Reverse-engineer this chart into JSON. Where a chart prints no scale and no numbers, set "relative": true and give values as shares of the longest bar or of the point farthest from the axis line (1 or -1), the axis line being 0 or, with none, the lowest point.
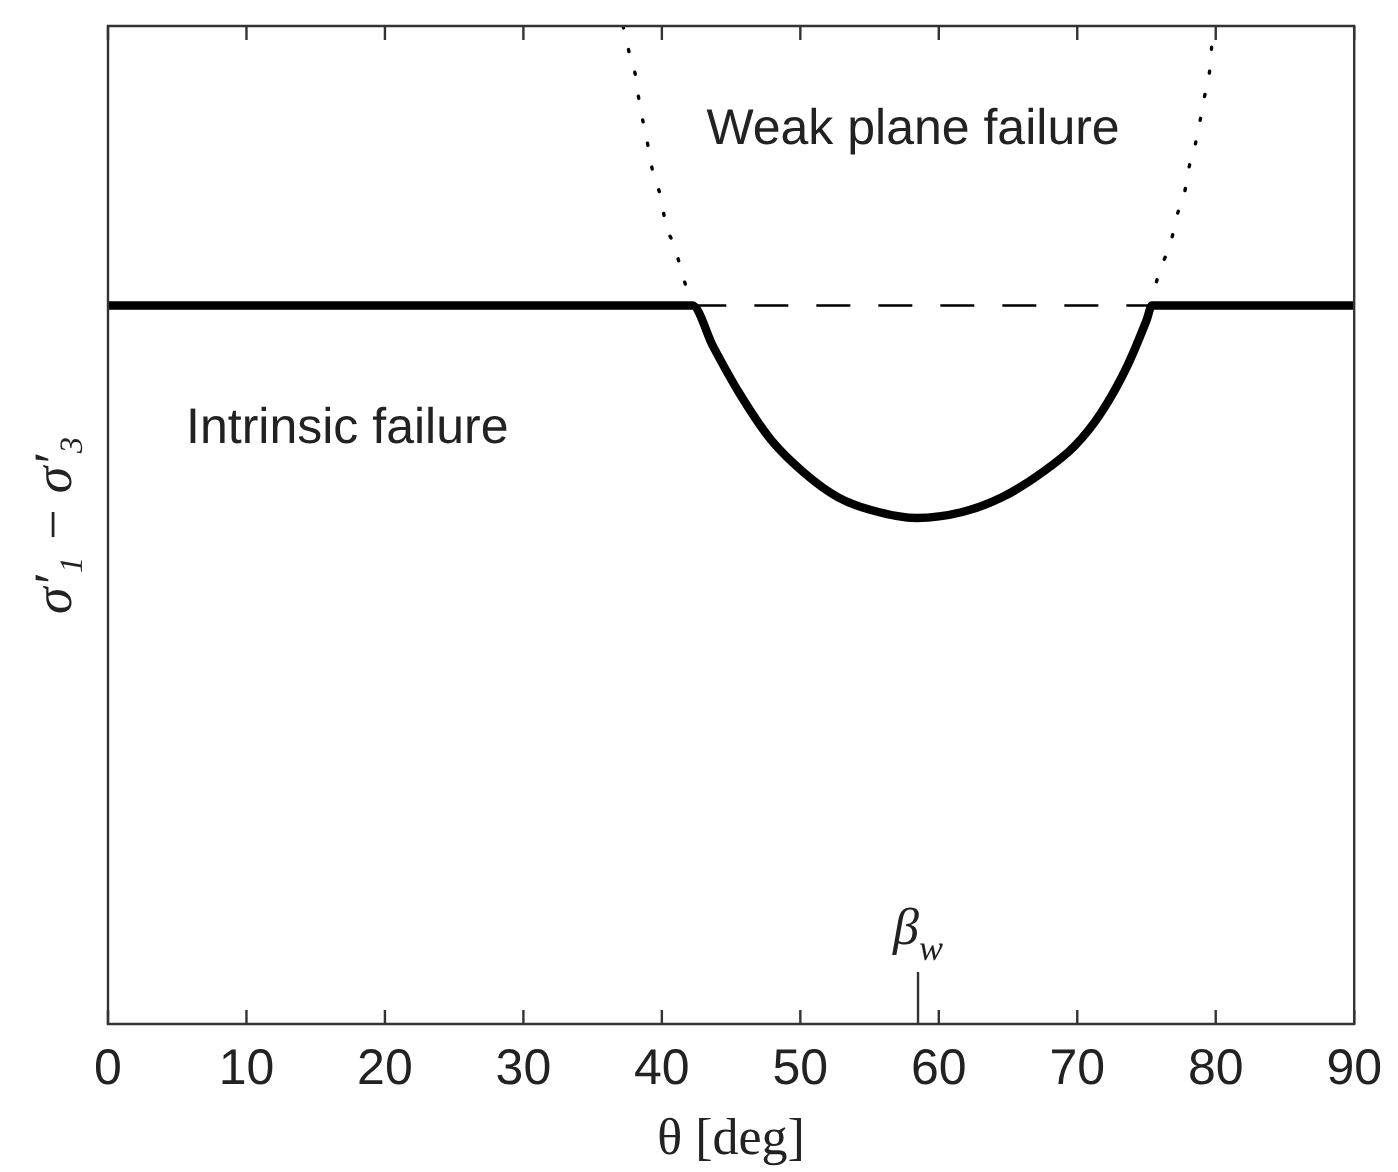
{
  "chart_data": {
    "type": "line",
    "xlabel": "θ [deg]",
    "ylabel": "σ′₁ − σ′₃",
    "relative": true,
    "tick_labels": "x",
    "xlim": [
      0,
      90
    ],
    "xticks": [
      0,
      10,
      20,
      30,
      40,
      50,
      60,
      70,
      80,
      90
    ],
    "series": [
      {
        "color": "#000000",
        "line_style": "solid",
        "x": [
          0,
          42.2,
          43.7,
          45.6,
          47.9,
          50.3,
          52.7,
          55.1,
          58.4,
          61.7,
          64.6,
          67.4,
          69.8,
          71.7,
          73.6,
          75.0,
          75.4,
          90
        ],
        "values": [
          0.72,
          0.72,
          0.679,
          0.632,
          0.585,
          0.552,
          0.528,
          0.515,
          0.507,
          0.513,
          0.528,
          0.552,
          0.579,
          0.612,
          0.659,
          0.705,
          0.72,
          0.72
        ]
      },
      {
        "color": "#000000",
        "line_style": "dashed",
        "x": [
          42.2,
          75.4
        ],
        "values": [
          0.72,
          0.72
        ]
      },
      {
        "color": "#000000",
        "line_style": "dotted",
        "x": [
          37.2,
          37.7,
          38.1,
          38.3,
          38.7,
          39.0,
          39.4,
          39.9,
          40.3,
          40.9,
          41.5,
          42.2,
          58.5,
          75.4,
          75.5,
          76.1,
          76.7,
          77.2,
          77.7,
          78.1,
          78.5,
          78.8,
          79.2,
          79.6,
          79.8
        ],
        "values": [
          1,
          0.97,
          0.95,
          0.93,
          0.9,
          0.88,
          0.85,
          0.83,
          0.8,
          0.78,
          0.75,
          0.72,
          null,
          0.72,
          0.73,
          0.76,
          0.78,
          0.81,
          0.83,
          0.86,
          0.88,
          0.9,
          0.93,
          0.96,
          1
        ]
      }
    ],
    "ref_lines": [
      {
        "axis": "x",
        "value": 58.5,
        "label": "β$_{w}$"
      }
    ],
    "annotations": [
      "Weak plane failure",
      "Intrinsic failure"
    ]
  }
}
